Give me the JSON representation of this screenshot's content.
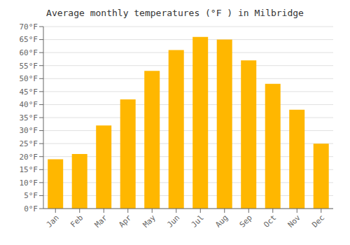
{
  "chart_data": {
    "type": "bar",
    "title": "Average monthly temperatures (°F ) in Milbridge",
    "categories": [
      "Jan",
      "Feb",
      "Mar",
      "Apr",
      "May",
      "Jun",
      "Jul",
      "Aug",
      "Sep",
      "Oct",
      "Nov",
      "Dec"
    ],
    "values": [
      19,
      21,
      32,
      42,
      53,
      61,
      66,
      65,
      57,
      48,
      38,
      25
    ],
    "color": "#FFB700",
    "ylim": [
      0,
      70
    ],
    "yticks": [
      {
        "value": 0,
        "label": "0°F"
      },
      {
        "value": 5,
        "label": "5°F"
      },
      {
        "value": 10,
        "label": "10°F"
      },
      {
        "value": 15,
        "label": "15°F"
      },
      {
        "value": 20,
        "label": "20°F"
      },
      {
        "value": 25,
        "label": "25°F"
      },
      {
        "value": 30,
        "label": "30°F"
      },
      {
        "value": 35,
        "label": "35°F"
      },
      {
        "value": 40,
        "label": "40°F"
      },
      {
        "value": 45,
        "label": "45°F"
      },
      {
        "value": 50,
        "label": "50°F"
      },
      {
        "value": 55,
        "label": "55°F"
      },
      {
        "value": 60,
        "label": "60°F"
      },
      {
        "value": 65,
        "label": "65°F"
      },
      {
        "value": 70,
        "label": "70°F"
      }
    ],
    "grid": true
  }
}
